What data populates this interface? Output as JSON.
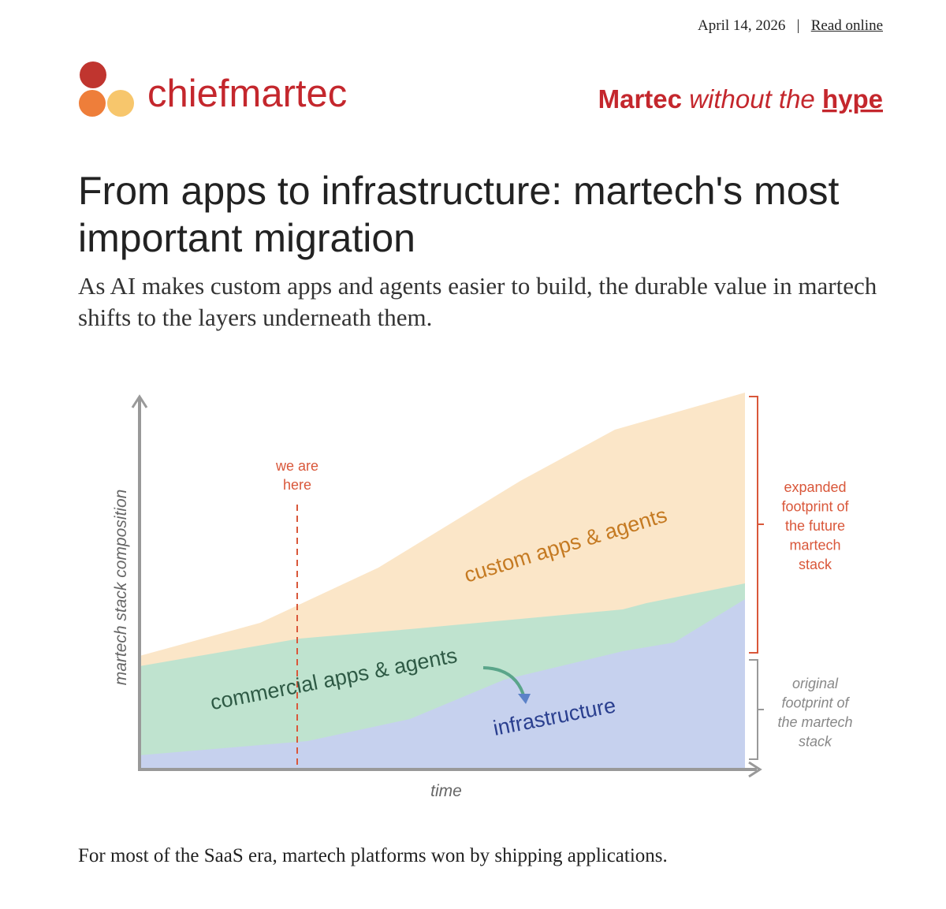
{
  "header": {
    "date": "April 14, 2026",
    "separator": "|",
    "read_online": "Read online",
    "brand": "chiefmartec",
    "tagline_1": "Martec",
    "tagline_2": "without the",
    "tagline_3": "hype"
  },
  "article": {
    "title": "From apps to infrastructure: martech's most important migration",
    "subtitle": "As AI makes custom apps and agents easier to build, the durable value in martech shifts to the layers underneath them.",
    "paragraphs": [
      "For most of the SaaS era, martech platforms won by shipping applications."
    ]
  },
  "figure": {
    "y_axis_label": "martech stack composition",
    "x_axis_label": "time",
    "marker_label": [
      "we are",
      "here"
    ],
    "layers": [
      "custom apps & agents",
      "commercial apps & agents",
      "infrastructure"
    ],
    "bracket_future": [
      "expanded",
      "footprint of",
      "the future",
      "martech",
      "stack"
    ],
    "bracket_original": [
      "original",
      "footprint of",
      "the martech",
      "stack"
    ]
  }
}
